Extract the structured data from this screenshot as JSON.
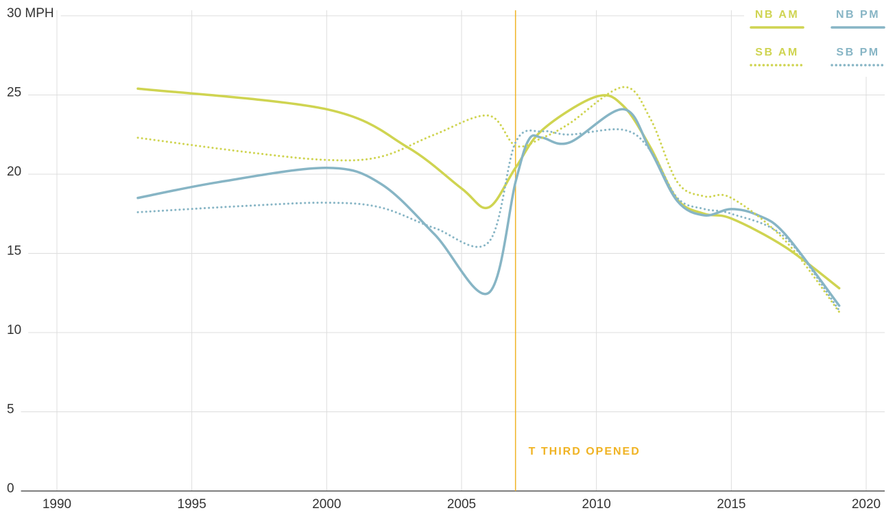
{
  "chart_data": {
    "type": "line",
    "xlim": [
      1988.5,
      2021.2
    ],
    "ylim": [
      0,
      30
    ],
    "xticks": [
      1990,
      1995,
      2000,
      2005,
      2010,
      2015,
      2020
    ],
    "yticks": [
      0,
      5,
      10,
      15,
      20,
      25,
      {
        "value": 30,
        "label": "30 MPH"
      }
    ],
    "grid": true,
    "legend": "top-right",
    "annotation": {
      "text": "T THIRD OPENED",
      "x": 2007,
      "color": "#f0b323"
    },
    "series": [
      {
        "name": "NB AM",
        "color": "#cfd451",
        "style": "solid",
        "x": [
          1993,
          2000,
          2003,
          2005,
          2006,
          2007,
          2008,
          2010,
          2011,
          2012,
          2013,
          2014,
          2015,
          2017,
          2019
        ],
        "values": [
          25.4,
          24.1,
          21.7,
          19.1,
          17.9,
          20.4,
          22.8,
          24.9,
          24.3,
          21.7,
          18.4,
          17.5,
          17.2,
          15.4,
          12.8
        ]
      },
      {
        "name": "NB PM",
        "color": "#87b5c5",
        "style": "solid",
        "x": [
          1993,
          1996,
          2000,
          2002,
          2004,
          2006,
          2007,
          2007.5,
          2008,
          2009,
          2011,
          2012,
          2013,
          2014,
          2015,
          2016,
          2017,
          2019
        ],
        "values": [
          18.5,
          19.5,
          20.4,
          19.4,
          16.2,
          12.5,
          19.5,
          22.2,
          22.3,
          22.0,
          24.1,
          21.5,
          18.3,
          17.4,
          17.8,
          17.4,
          16.2,
          11.7
        ]
      },
      {
        "name": "SB AM",
        "color": "#cfd451",
        "style": "dotted",
        "x": [
          1993,
          1997,
          2000,
          2002,
          2004,
          2006,
          2007,
          2008,
          2009,
          2011,
          2012,
          2013,
          2014,
          2015,
          2017,
          2019
        ],
        "values": [
          22.3,
          21.4,
          20.9,
          21.1,
          22.5,
          23.7,
          21.8,
          22.3,
          23.2,
          25.5,
          23.5,
          19.5,
          18.6,
          18.5,
          15.8,
          11.3
        ]
      },
      {
        "name": "SB PM",
        "color": "#87b5c5",
        "style": "dotted",
        "x": [
          1993,
          1997,
          2000,
          2002,
          2004,
          2006,
          2007,
          2008,
          2009,
          2011,
          2012,
          2013,
          2014,
          2015,
          2017,
          2019
        ],
        "values": [
          17.6,
          18.0,
          18.2,
          17.9,
          16.6,
          15.7,
          22.0,
          22.7,
          22.5,
          22.8,
          21.5,
          18.5,
          17.8,
          17.5,
          16.0,
          11.4
        ]
      }
    ]
  }
}
